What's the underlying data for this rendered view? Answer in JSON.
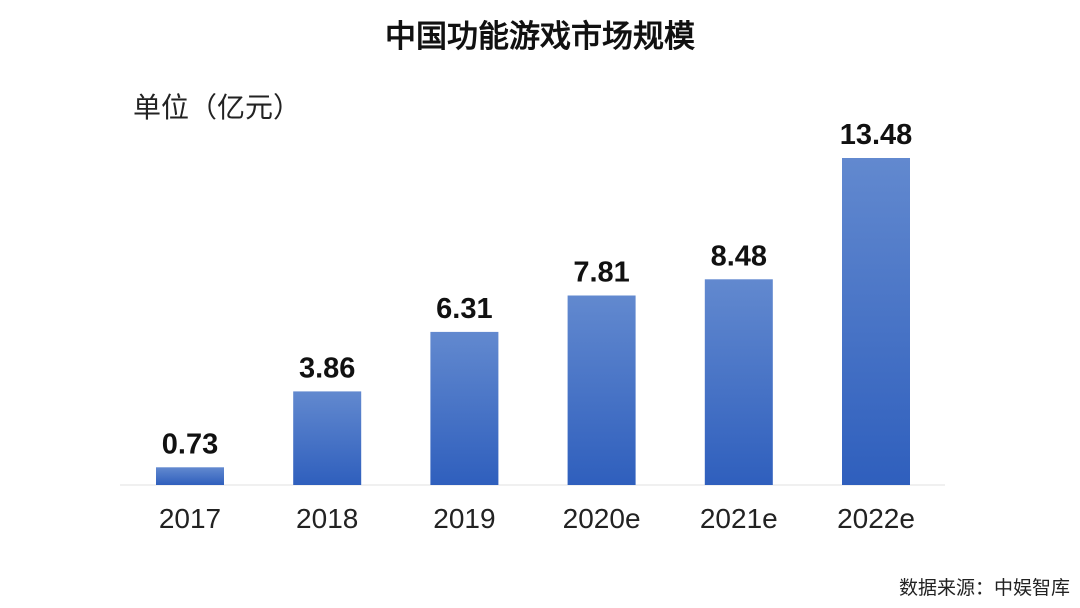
{
  "chart_data": {
    "type": "bar",
    "title": "中国功能游戏市场规模",
    "unit_label": "单位（亿元）",
    "categories": [
      "2017",
      "2018",
      "2019",
      "2020e",
      "2021e",
      "2022e"
    ],
    "values": [
      0.73,
      3.86,
      6.31,
      7.81,
      8.48,
      13.48
    ],
    "value_labels": [
      "0.73",
      "3.86",
      "6.31",
      "7.81",
      "8.48",
      "13.48"
    ],
    "xlabel": "",
    "ylabel": "",
    "ylim": [
      0,
      13.48
    ],
    "grid": false,
    "legend": "none",
    "bar_color_top": "#6289cf",
    "bar_color_bottom": "#2f5fbd",
    "source": "数据来源：中娱智库"
  }
}
